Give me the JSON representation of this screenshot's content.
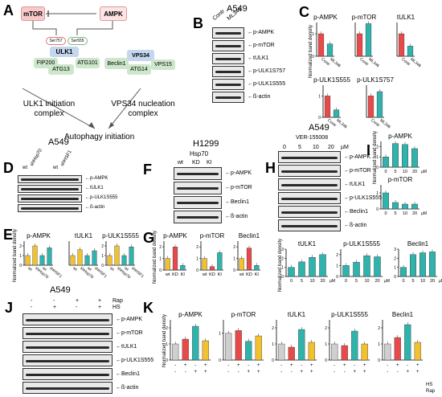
{
  "panels": {
    "A": "A",
    "B": "B",
    "C": "C",
    "D": "D",
    "E": "E",
    "F": "F",
    "G": "G",
    "H": "H",
    "I": "I",
    "J": "J",
    "K": "K"
  },
  "schematic": {
    "mtor": "mTOR",
    "ampk": "AMPK",
    "ser757": "Ser757",
    "ser555": "Ser555",
    "ulk1": "ULK1",
    "fip200": "FIP200",
    "atg13": "ATG13",
    "atg101": "ATG101",
    "vps34": "VPS34",
    "beclin1": "Beclin1",
    "atg14": "ATG14",
    "vps15": "VPS15",
    "ulk1_complex": "ULK1 initiation complex",
    "vps34_complex": "VPS34 nucleation complex",
    "autophagy": "Autophagy initiation"
  },
  "B": {
    "cell": "A549",
    "lanes": [
      "Contr",
      "ML346"
    ],
    "rows": [
      "p-AMPK",
      "p-mTOR",
      "tULK1",
      "p-ULK1S757",
      "p-ULK1S555",
      "ß-actin"
    ]
  },
  "D": {
    "cell": "A549",
    "lanes": [
      "wt",
      "shHsp70",
      "wt",
      "shHSF1"
    ],
    "rows": [
      "p-AMPK",
      "tULK1",
      "p-ULK1S555",
      "ß-actin"
    ]
  },
  "F": {
    "cell": "H1299",
    "header": "Hsp70",
    "lanes": [
      "wt",
      "KD",
      "KI"
    ],
    "rows": [
      "p-AMPK",
      "p-mTOR",
      "Beclin1",
      "ß-actin"
    ]
  },
  "H": {
    "cell": "A549",
    "header": "VER-155008",
    "lanes": [
      "0",
      "5",
      "10",
      "20"
    ],
    "unit": "µM",
    "rows": [
      "p-AMPK",
      "p-mTOR",
      "tULK1",
      "p-ULK1S555",
      "Beclin1",
      "ß-actin"
    ]
  },
  "J": {
    "cell": "A549",
    "rap": [
      "-",
      "-",
      "+",
      "+"
    ],
    "hs": [
      "-",
      "+",
      "-",
      "+"
    ],
    "rap_label": "Rap",
    "hs_label": "HS",
    "rows": [
      "p-AMPK",
      "p-mTOR",
      "tULK1",
      "p-ULK1S555",
      "Beclin1",
      "ß-actin"
    ]
  },
  "ylabel": "Normalized band density",
  "colors": {
    "red": "#e84a4a",
    "teal": "#2fb3ac",
    "yellow": "#f2c12e",
    "gray": "#cfcfcf",
    "pink": "#f7c9c9",
    "blue": "#c5d7ef",
    "green": "#cde7cb"
  },
  "chart_data": [
    {
      "id": "C-pAMPK",
      "type": "bar",
      "title": "p-AMPK",
      "categories": [
        "Contr",
        "ML346"
      ],
      "values": [
        1.0,
        0.55
      ],
      "ylim": [
        0,
        1.5
      ],
      "ticks": [
        "0",
        "1"
      ],
      "colors": [
        "#e84a4a",
        "#2fb3ac"
      ]
    },
    {
      "id": "C-pmTOR",
      "type": "bar",
      "title": "p-mTOR",
      "categories": [
        "Contr",
        "ML346"
      ],
      "values": [
        1.0,
        1.45
      ],
      "ylim": [
        0,
        1.5
      ],
      "colors": [
        "#e84a4a",
        "#2fb3ac"
      ]
    },
    {
      "id": "C-tULK1",
      "type": "bar",
      "title": "tULK1",
      "categories": [
        "Contr",
        "ML346"
      ],
      "values": [
        1.0,
        0.45
      ],
      "ylim": [
        0,
        1.5
      ],
      "colors": [
        "#e84a4a",
        "#2fb3ac"
      ]
    },
    {
      "id": "C-pULK1S555",
      "type": "bar",
      "title": "p-ULK1S555",
      "categories": [
        "Contr",
        "ML346"
      ],
      "values": [
        1.0,
        0.35
      ],
      "ylim": [
        0,
        1.5
      ],
      "ticks": [
        "0",
        "1"
      ],
      "colors": [
        "#e84a4a",
        "#2fb3ac"
      ]
    },
    {
      "id": "C-pULK1S757",
      "type": "bar",
      "title": "p-ULK1S757",
      "categories": [
        "Contr",
        "ML346"
      ],
      "values": [
        1.0,
        1.2
      ],
      "ylim": [
        0,
        1.5
      ],
      "colors": [
        "#e84a4a",
        "#2fb3ac"
      ]
    },
    {
      "id": "E-pAMPK",
      "type": "bar",
      "title": "p-AMPK",
      "categories": [
        "wt",
        "shHsp70",
        "wt",
        "shHSF1"
      ],
      "values": [
        1.0,
        2.0,
        1.0,
        1.8
      ],
      "ylim": [
        0,
        2.5
      ],
      "ticks": [
        "0",
        "1",
        "2"
      ],
      "colors": [
        "#f2c12e",
        "#f2c12e",
        "#2fb3ac",
        "#2fb3ac"
      ]
    },
    {
      "id": "E-tULK1",
      "type": "bar",
      "title": "tULK1",
      "categories": [
        "wt",
        "shHsp70",
        "wt",
        "shHSF1"
      ],
      "values": [
        1.0,
        1.6,
        1.0,
        1.5
      ],
      "ylim": [
        0,
        2.5
      ],
      "colors": [
        "#f2c12e",
        "#f2c12e",
        "#2fb3ac",
        "#2fb3ac"
      ]
    },
    {
      "id": "E-pULK1S555",
      "type": "bar",
      "title": "p-ULK1S555",
      "categories": [
        "wt",
        "shHsp70",
        "wt",
        "shHSF1"
      ],
      "values": [
        1.0,
        2.0,
        1.0,
        1.9
      ],
      "ylim": [
        0,
        2.5
      ],
      "ticks": [
        "0",
        "1",
        "2"
      ],
      "colors": [
        "#f2c12e",
        "#f2c12e",
        "#2fb3ac",
        "#2fb3ac"
      ]
    },
    {
      "id": "G-pAMPK",
      "type": "bar",
      "title": "p-AMPK",
      "categories": [
        "wt",
        "KD",
        "KI"
      ],
      "values": [
        1.0,
        2.0,
        0.4
      ],
      "ylim": [
        0,
        2.5
      ],
      "ticks": [
        "0",
        "1",
        "2"
      ],
      "colors": [
        "#f2c12e",
        "#e84a4a",
        "#2fb3ac"
      ]
    },
    {
      "id": "G-pmTOR",
      "type": "bar",
      "title": "p-mTOR",
      "categories": [
        "wt",
        "KD",
        "KI"
      ],
      "values": [
        1.0,
        0.3,
        1.5
      ],
      "ylim": [
        0,
        2.5
      ],
      "ticks": [
        "0",
        "1",
        "2"
      ],
      "colors": [
        "#f2c12e",
        "#e84a4a",
        "#2fb3ac"
      ]
    },
    {
      "id": "G-Beclin1",
      "type": "bar",
      "title": "Beclin1",
      "categories": [
        "wt",
        "KD",
        "KI"
      ],
      "values": [
        1.0,
        1.9,
        0.4
      ],
      "ylim": [
        0,
        2.5
      ],
      "ticks": [
        "0",
        "1",
        "2"
      ],
      "colors": [
        "#f2c12e",
        "#e84a4a",
        "#2fb3ac"
      ]
    },
    {
      "id": "I-pAMPK",
      "type": "bar",
      "title": "p-AMPK",
      "categories": [
        "0",
        "5",
        "10",
        "20"
      ],
      "values": [
        1.0,
        2.3,
        2.2,
        1.8
      ],
      "ylim": [
        0,
        2.5
      ],
      "ticks": [
        "0",
        "1",
        "2"
      ],
      "unit": "µM",
      "colors": [
        "#2fb3ac",
        "#2fb3ac",
        "#2fb3ac",
        "#2fb3ac"
      ]
    },
    {
      "id": "I-pmTOR",
      "type": "bar",
      "title": "p-mTOR",
      "categories": [
        "0",
        "5",
        "10",
        "20"
      ],
      "values": [
        1.0,
        0.4,
        0.3,
        0.3
      ],
      "ylim": [
        0,
        1.5
      ],
      "ticks": [
        "0",
        "1"
      ],
      "unit": "µM",
      "colors": [
        "#2fb3ac",
        "#2fb3ac",
        "#2fb3ac",
        "#2fb3ac"
      ]
    },
    {
      "id": "I-tULK1",
      "type": "bar",
      "title": "tULK1",
      "categories": [
        "0",
        "5",
        "10",
        "20"
      ],
      "values": [
        1.0,
        1.6,
        2.1,
        2.4
      ],
      "ylim": [
        0,
        3
      ],
      "ticks": [
        "0",
        "1",
        "2",
        "3"
      ],
      "unit": "µM",
      "colors": [
        "#2fb3ac",
        "#2fb3ac",
        "#2fb3ac",
        "#2fb3ac"
      ]
    },
    {
      "id": "I-pULK1S555",
      "type": "bar",
      "title": "p-ULK1S555",
      "categories": [
        "0",
        "5",
        "10",
        "20"
      ],
      "values": [
        1.0,
        1.3,
        1.9,
        1.8
      ],
      "ylim": [
        0,
        2.5
      ],
      "ticks": [
        "0",
        "1",
        "2"
      ],
      "unit": "µM",
      "colors": [
        "#2fb3ac",
        "#2fb3ac",
        "#2fb3ac",
        "#2fb3ac"
      ]
    },
    {
      "id": "I-Beclin1",
      "type": "bar",
      "title": "Beclin1",
      "categories": [
        "0",
        "5",
        "10",
        "20"
      ],
      "values": [
        1.0,
        2.4,
        2.6,
        2.7
      ],
      "ylim": [
        0,
        3
      ],
      "ticks": [
        "0",
        "1",
        "2",
        "3"
      ],
      "unit": "µM",
      "colors": [
        "#2fb3ac",
        "#2fb3ac",
        "#2fb3ac",
        "#2fb3ac"
      ]
    },
    {
      "id": "K-pAMPK",
      "type": "bar",
      "title": "p-AMPK",
      "categories": [
        "-/-",
        "+/-",
        "-/+",
        "+/+"
      ],
      "values": [
        1.0,
        1.3,
        2.1,
        1.2
      ],
      "ylim": [
        0,
        2.5
      ],
      "ticks": [
        "0",
        "1",
        "2"
      ],
      "colors": [
        "#cfcfcf",
        "#e84a4a",
        "#2fb3ac",
        "#f2c12e"
      ]
    },
    {
      "id": "K-pmTOR",
      "type": "bar",
      "title": "p-mTOR",
      "categories": [
        "-/-",
        "+/-",
        "-/+",
        "+/+"
      ],
      "values": [
        1.0,
        1.1,
        0.7,
        0.9
      ],
      "ylim": [
        0,
        1.5
      ],
      "ticks": [
        "0",
        "1"
      ],
      "colors": [
        "#cfcfcf",
        "#e84a4a",
        "#2fb3ac",
        "#f2c12e"
      ]
    },
    {
      "id": "K-tULK1",
      "type": "bar",
      "title": "tULK1",
      "categories": [
        "-/-",
        "+/-",
        "-/+",
        "+/+"
      ],
      "values": [
        1.0,
        0.8,
        1.9,
        1.1
      ],
      "ylim": [
        0,
        2.5
      ],
      "ticks": [
        "0",
        "1",
        "2"
      ],
      "colors": [
        "#cfcfcf",
        "#e84a4a",
        "#2fb3ac",
        "#f2c12e"
      ]
    },
    {
      "id": "K-pULK1S555",
      "type": "bar",
      "title": "p-ULK1S555",
      "categories": [
        "-/-",
        "+/-",
        "-/+",
        "+/+"
      ],
      "values": [
        1.0,
        0.9,
        1.8,
        1.0
      ],
      "ylim": [
        0,
        2.5
      ],
      "ticks": [
        "0",
        "1",
        "2"
      ],
      "colors": [
        "#cfcfcf",
        "#e84a4a",
        "#2fb3ac",
        "#f2c12e"
      ]
    },
    {
      "id": "K-Beclin1",
      "type": "bar",
      "title": "Beclin1",
      "categories": [
        "-/-",
        "+/-",
        "-/+",
        "+/+"
      ],
      "values": [
        1.0,
        1.4,
        2.2,
        1.1
      ],
      "ylim": [
        0,
        2.5
      ],
      "ticks": [
        "0",
        "1",
        "2"
      ],
      "colors": [
        "#cfcfcf",
        "#e84a4a",
        "#2fb3ac",
        "#f2c12e"
      ]
    }
  ],
  "K_conditions": {
    "hs": [
      "-",
      "+",
      "-",
      "+"
    ],
    "rap": [
      "-",
      "-",
      "+",
      "+"
    ],
    "hs_label": "HS",
    "rap_label": "Rap"
  }
}
